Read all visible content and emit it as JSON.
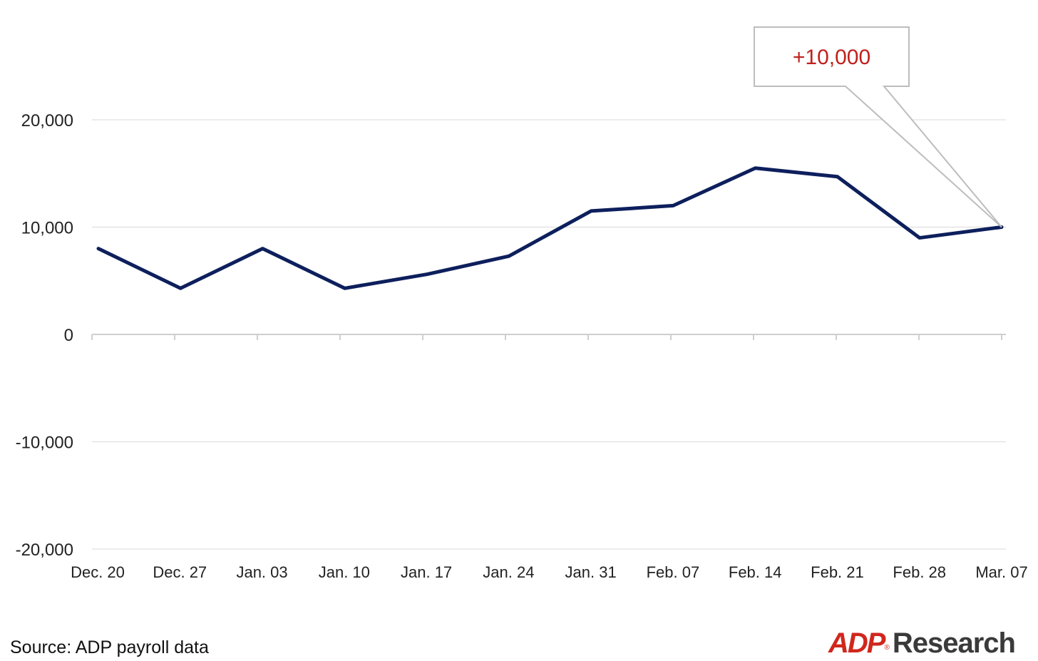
{
  "chart_data": {
    "type": "line",
    "categories": [
      "Dec. 20",
      "Dec. 27",
      "Jan. 03",
      "Jan. 10",
      "Jan. 17",
      "Jan. 24",
      "Jan. 31",
      "Feb. 07",
      "Feb. 14",
      "Feb. 21",
      "Feb. 28",
      "Mar. 07"
    ],
    "series": [
      {
        "values": [
          8000,
          4300,
          8000,
          4300,
          5600,
          7300,
          11500,
          12000,
          15500,
          14700,
          9000,
          10000
        ]
      }
    ],
    "ylim": [
      -20000,
      20000
    ],
    "yticks": [
      20000,
      10000,
      0,
      -10000,
      -20000
    ],
    "ytick_labels": [
      "20,000",
      "10,000",
      "0",
      "-10,000",
      "-20,000"
    ],
    "grid": "horizontal",
    "line_color": "#0d1f5c",
    "annotation": {
      "text": "+10,000",
      "target_category": "Mar. 07",
      "target_value": 10000,
      "color": "#c0201d"
    }
  },
  "source": "Source: ADP payroll data",
  "logo": {
    "brand": "ADP",
    "registered": "®",
    "suffix": "Research",
    "brand_color": "#d0271d"
  }
}
